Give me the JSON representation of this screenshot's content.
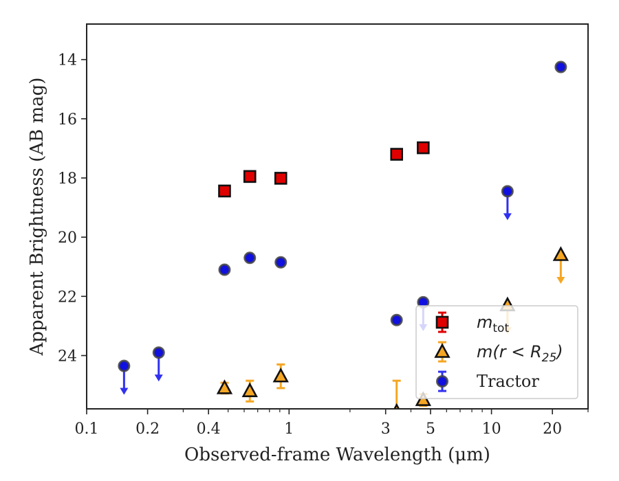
{
  "chart_data": {
    "type": "scatter",
    "title": "",
    "xlabel": "Observed-frame Wavelength (μm)",
    "ylabel": "Apparent Brightness (AB mag)",
    "xscale": "log",
    "xlim": [
      0.1,
      30
    ],
    "ylim": [
      25.8,
      12.8
    ],
    "y_inverted": true,
    "grid": false,
    "legend_position": "lower-right",
    "x_ticks": [
      {
        "value": 0.1,
        "label": "0.1"
      },
      {
        "value": 0.2,
        "label": "0.2"
      },
      {
        "value": 0.4,
        "label": "0.4"
      },
      {
        "value": 1,
        "label": "1"
      },
      {
        "value": 3,
        "label": "3"
      },
      {
        "value": 5,
        "label": "5"
      },
      {
        "value": 10,
        "label": "10"
      },
      {
        "value": 20,
        "label": "20"
      }
    ],
    "y_ticks": [
      {
        "value": 14,
        "label": "14"
      },
      {
        "value": 16,
        "label": "16"
      },
      {
        "value": 18,
        "label": "18"
      },
      {
        "value": 20,
        "label": "20"
      },
      {
        "value": 22,
        "label": "22"
      },
      {
        "value": 24,
        "label": "24"
      }
    ],
    "series": [
      {
        "name": "m_tot",
        "legend_main": "m",
        "legend_sub": "tot",
        "marker": "square",
        "color": "#e00000",
        "errcolor": "#e00000",
        "points": [
          {
            "x": 0.48,
            "y": 18.44
          },
          {
            "x": 0.64,
            "y": 17.95
          },
          {
            "x": 0.91,
            "y": 18.01
          },
          {
            "x": 3.4,
            "y": 17.2
          },
          {
            "x": 4.6,
            "y": 16.98
          }
        ]
      },
      {
        "name": "m(r < R25)",
        "legend_main": "m(r < R",
        "legend_sub": "25",
        "legend_tail": ")",
        "marker": "triangle",
        "color": "#f5a623",
        "errcolor": "#f5a623",
        "points": [
          {
            "x": 0.48,
            "y": 25.1,
            "yerr": 0.18
          },
          {
            "x": 0.64,
            "y": 25.2,
            "yerr": 0.35
          },
          {
            "x": 0.91,
            "y": 24.7,
            "yerr": 0.4
          },
          {
            "x": 3.4,
            "y": 25.9,
            "yerr": 1.05
          },
          {
            "x": 4.6,
            "y": 25.5,
            "yerr": 0.2
          },
          {
            "x": 12.0,
            "y": 22.3,
            "upper_limit": true
          },
          {
            "x": 22.0,
            "y": 20.6,
            "upper_limit": true
          }
        ]
      },
      {
        "name": "Tractor",
        "marker": "circle",
        "color": "#1010e0",
        "errcolor": "#3030f0",
        "points": [
          {
            "x": 0.153,
            "y": 24.35,
            "upper_limit": true
          },
          {
            "x": 0.227,
            "y": 23.9,
            "upper_limit": true
          },
          {
            "x": 0.48,
            "y": 21.1
          },
          {
            "x": 0.64,
            "y": 20.7
          },
          {
            "x": 0.91,
            "y": 20.85
          },
          {
            "x": 3.4,
            "y": 22.8
          },
          {
            "x": 4.6,
            "y": 22.2,
            "upper_limit": true
          },
          {
            "x": 12.0,
            "y": 18.45,
            "upper_limit": true
          },
          {
            "x": 22.0,
            "y": 14.25
          }
        ]
      }
    ]
  }
}
